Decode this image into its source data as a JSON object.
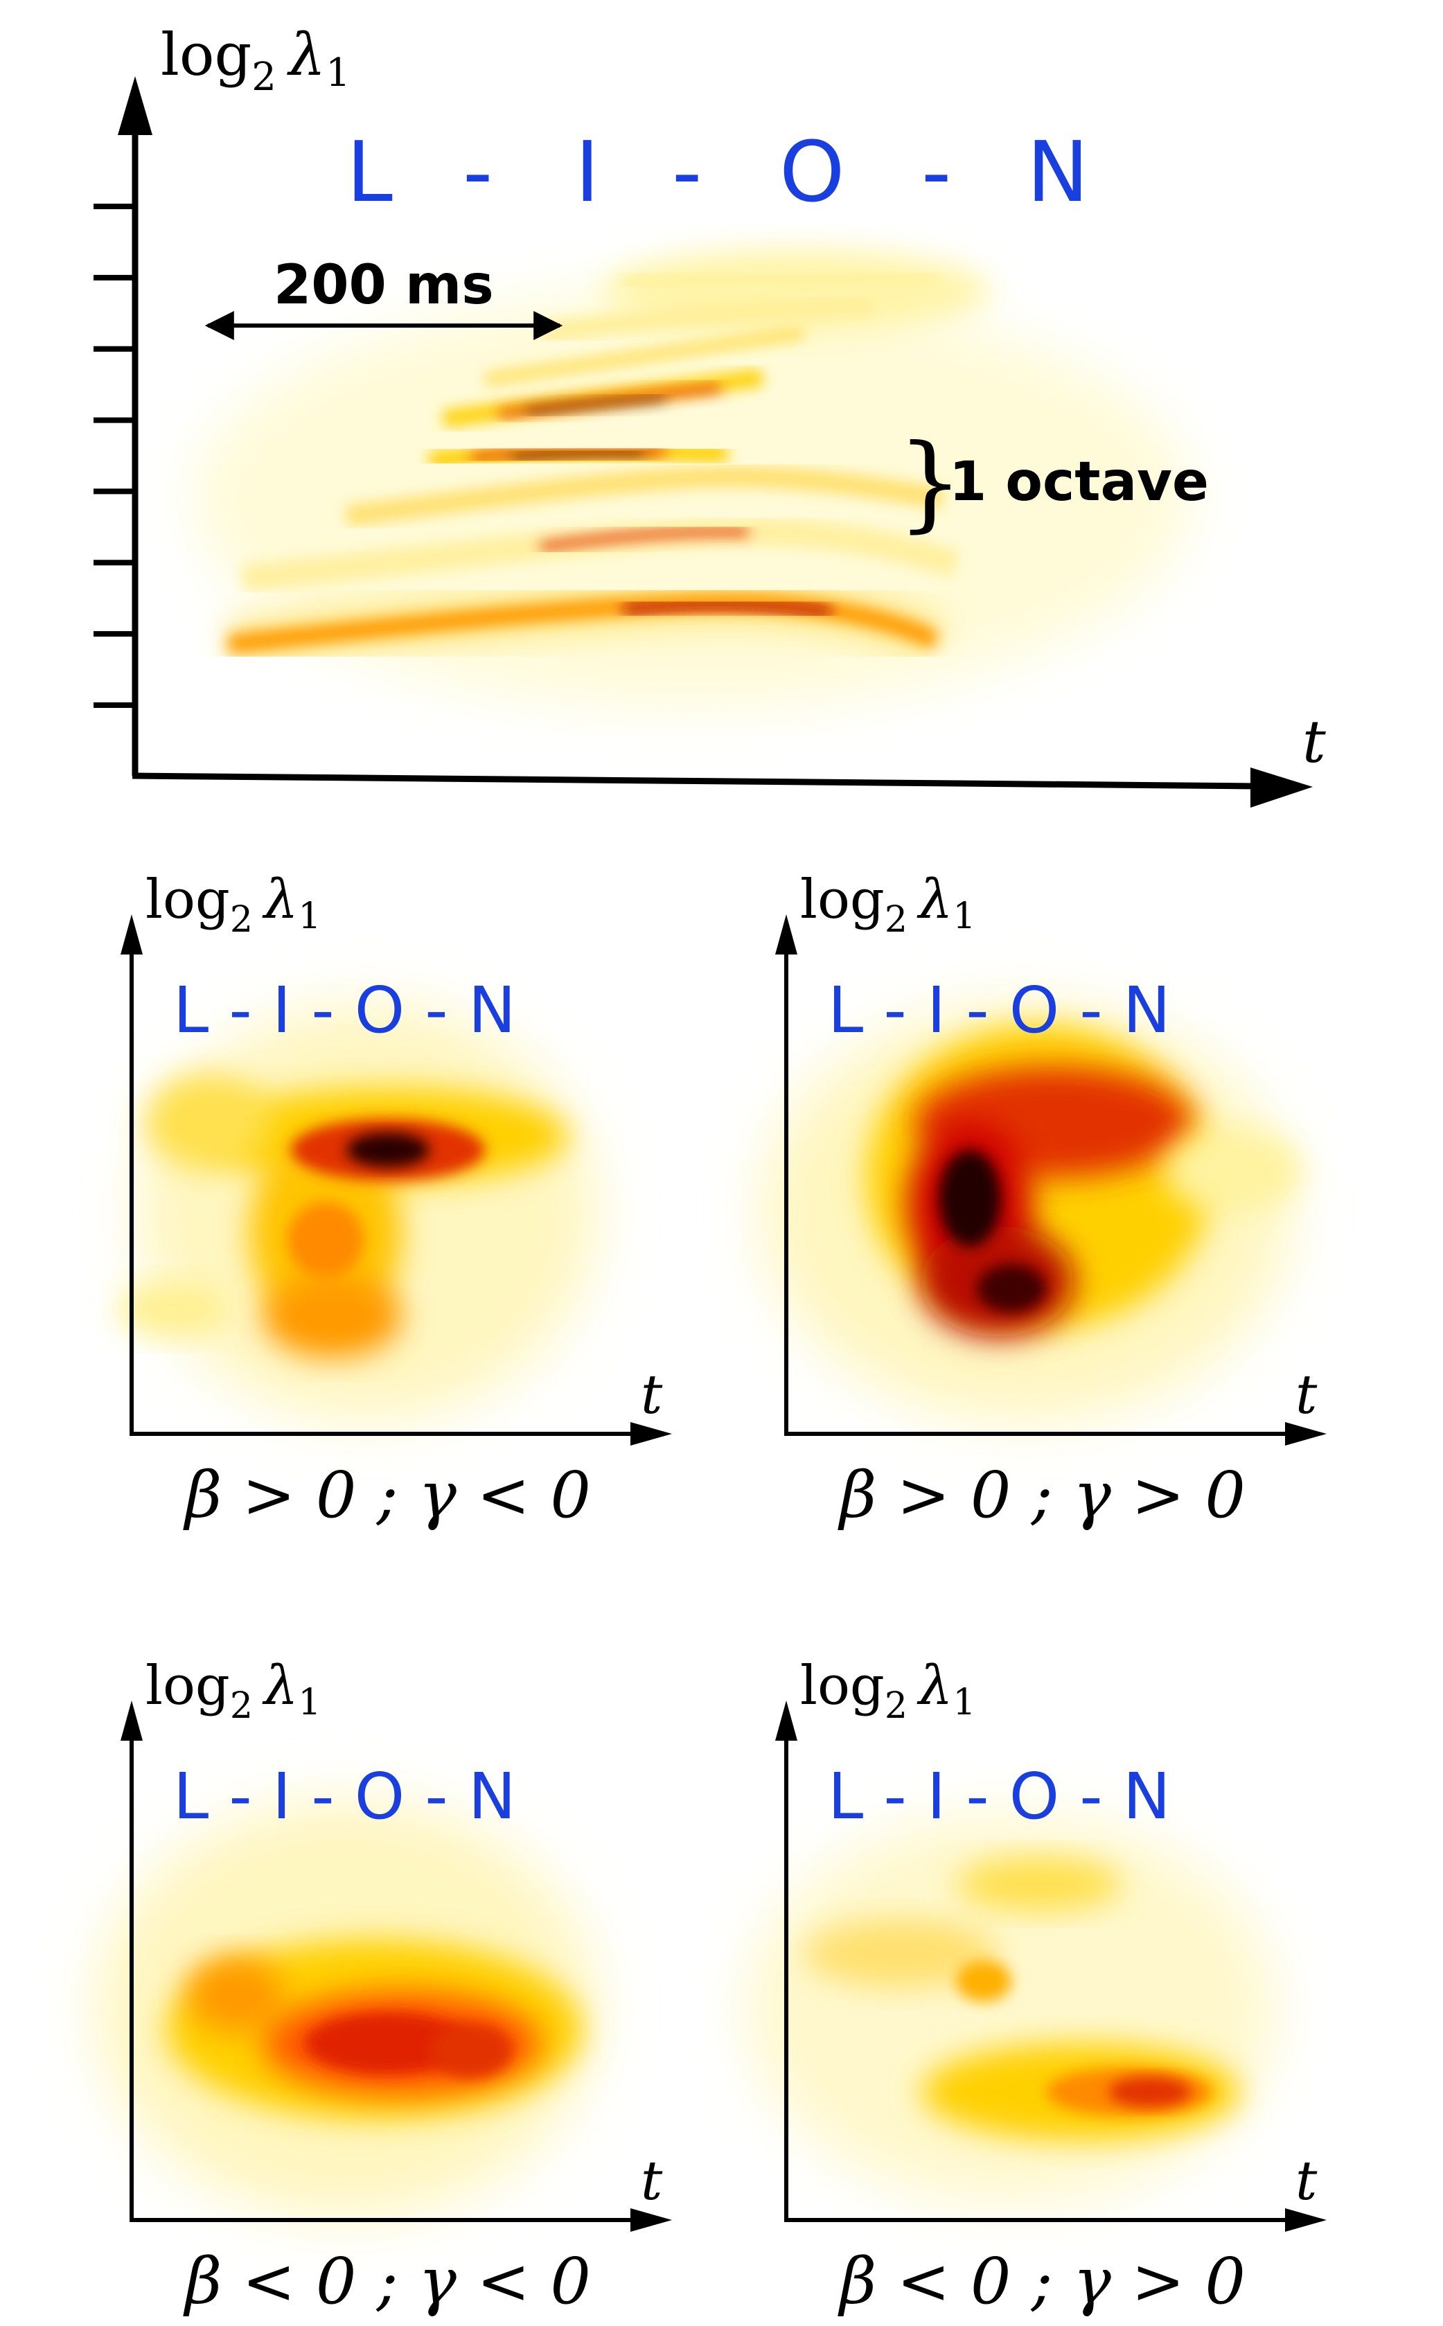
{
  "main_panel": {
    "y_axis_label": {
      "base": "log",
      "sub": "2",
      "symbol": "λ",
      "symbol_sub": "1"
    },
    "x_axis_label": "t",
    "word_letters": [
      "L",
      "-",
      "I",
      "-",
      "O",
      "-",
      "N"
    ],
    "duration_annotation": "200 ms",
    "octave_annotation": "1 octave",
    "tick_count": 8
  },
  "sub_panels": [
    {
      "y_axis_label": {
        "base": "log",
        "sub": "2",
        "symbol": "λ",
        "symbol_sub": "1"
      },
      "x_axis_label": "t",
      "word": "L - I - O - N",
      "caption": "β > 0 ; γ < 0"
    },
    {
      "y_axis_label": {
        "base": "log",
        "sub": "2",
        "symbol": "λ",
        "symbol_sub": "1"
      },
      "x_axis_label": "t",
      "word": "L - I - O - N",
      "caption": "β > 0 ; γ > 0"
    },
    {
      "y_axis_label": {
        "base": "log",
        "sub": "2",
        "symbol": "λ",
        "symbol_sub": "1"
      },
      "x_axis_label": "t",
      "word": "L - I - O - N",
      "caption": "β < 0 ; γ < 0"
    },
    {
      "y_axis_label": {
        "base": "log",
        "sub": "2",
        "symbol": "λ",
        "symbol_sub": "1"
      },
      "x_axis_label": "t",
      "word": "L - I - O - N",
      "caption": "β < 0 ; γ > 0"
    }
  ],
  "colors": {
    "word": "#1a3fe0",
    "axis": "#000000",
    "heat_low": "#fffbd0",
    "heat_mid": "#ffd000",
    "heat_high": "#e23200",
    "heat_max": "#2a0000"
  }
}
